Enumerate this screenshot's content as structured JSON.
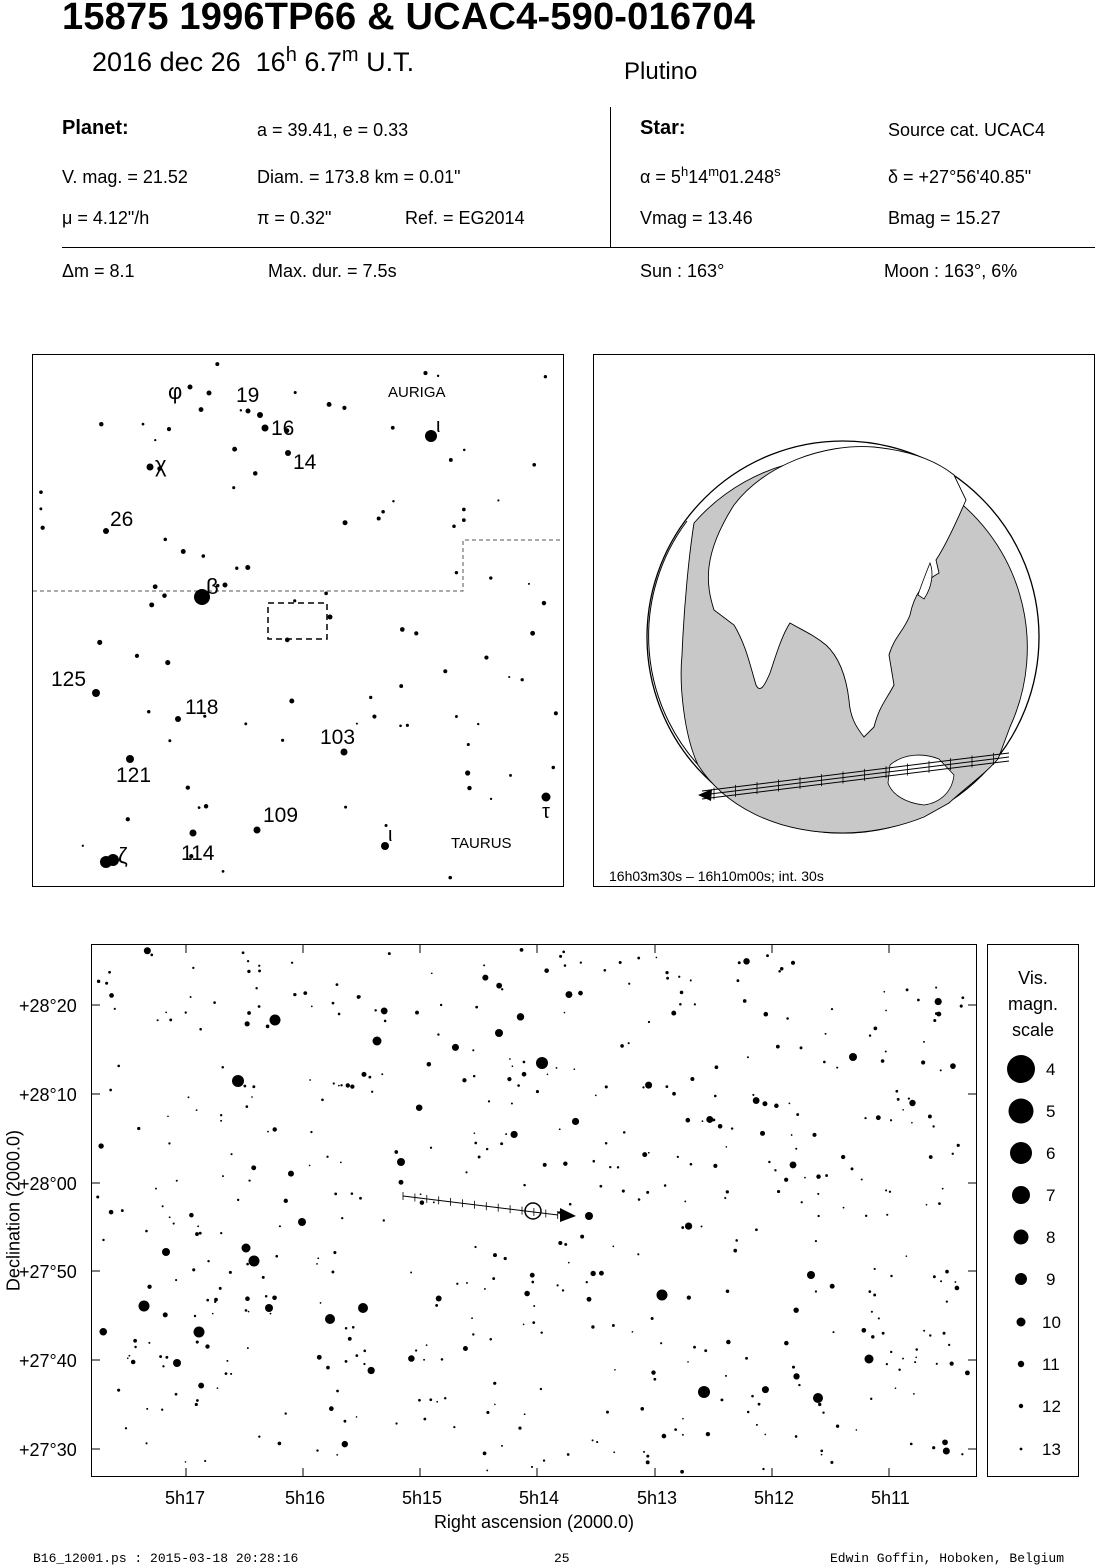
{
  "header": {
    "title": "15875 1996TP66  &  UCAC4-590-016704",
    "date": "2016 dec 26",
    "hour": "16",
    "hour_unit": "h",
    "minute": "6.7",
    "minute_unit": "m",
    "time_suffix": "U.T.",
    "object_class": "Plutino"
  },
  "planet": {
    "heading": "Planet:",
    "orbit": "a = 39.41, e = 0.33",
    "vmag": "V. mag. = 21.52",
    "diam": "Diam. = 173.8 km = 0.01\"",
    "mu": "μ =  4.12\"/h",
    "pi": "π =  0.32\"",
    "ref": "Ref. = EG2014"
  },
  "star": {
    "heading": "Star:",
    "source": "Source cat.  UCAC4",
    "ra_prefix": "α =  5",
    "ra_h": "h",
    "ra_min": "14",
    "ra_m": "m",
    "ra_sec": "01.248",
    "ra_s": "s",
    "dec": "δ = +27°56'40.85\"",
    "vmag": "Vmag = 13.46",
    "bmag": "Bmag = 15.27"
  },
  "summary": {
    "dm": "Δm = 8.1",
    "maxdur": "Max. dur. = 7.5s",
    "sun": "Sun : 163°",
    "moon": "Moon : 163°,  6%"
  },
  "finder": {
    "constellations": [
      "AURIGA",
      "TAURUS"
    ],
    "labels": [
      "φ",
      "19",
      "16",
      "14",
      "χ",
      "ι",
      "26",
      "β",
      "125",
      "118",
      "103",
      "121",
      "109",
      "τ",
      "ζ",
      "114",
      "ι"
    ]
  },
  "globe": {
    "caption": "16h03m30s – 16h10m00s; int. 30s"
  },
  "chart": {
    "ylabel": "Declination (2000.0)",
    "xlabel": "Right ascension (2000.0)",
    "yticks": [
      "+28°20",
      "+28°10",
      "+28°00",
      "+27°50",
      "+27°40",
      "+27°30"
    ],
    "xticks": [
      "5h17",
      "5h16",
      "5h15",
      "5h14",
      "5h13",
      "5h12",
      "5h11"
    ]
  },
  "scale": {
    "title": [
      "Vis.",
      "magn.",
      "scale"
    ],
    "mags": [
      "4",
      "5",
      "6",
      "7",
      "8",
      "9",
      "10",
      "11",
      "12",
      "13"
    ]
  },
  "footer": {
    "file": "B16_12001.ps : 2015-03-18 20:28:16",
    "page": "25",
    "author": "Edwin Goffin, Hoboken, Belgium"
  }
}
